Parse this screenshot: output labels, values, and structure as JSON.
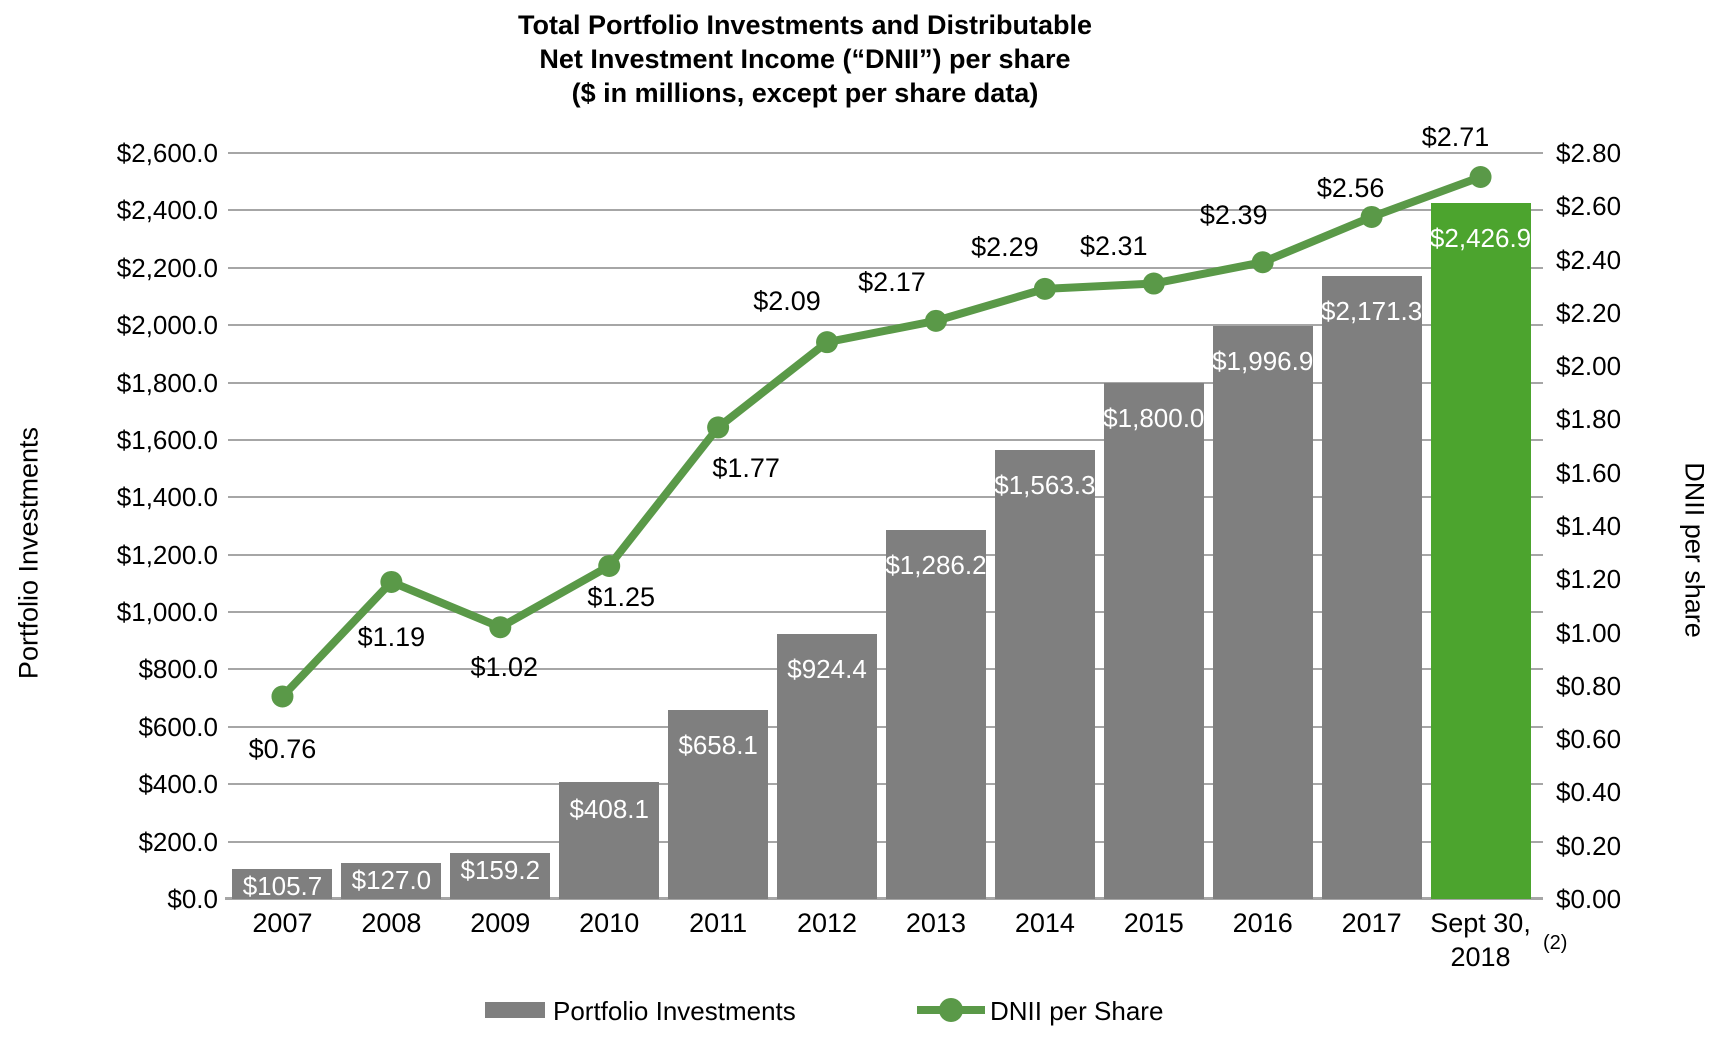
{
  "title": {
    "line1": "Total Portfolio Investments and Distributable",
    "line2": "Net Investment Income (“DNII”) per share",
    "line3": "($ in millions, except per share data)"
  },
  "chart_data": {
    "type": "bar+line combo",
    "categories": [
      "2007",
      "2008",
      "2009",
      "2010",
      "2011",
      "2012",
      "2013",
      "2014",
      "2015",
      "2016",
      "2017",
      "Sept 30, 2018"
    ],
    "series": [
      {
        "name": "Portfolio Investments",
        "type": "bar",
        "axis": "left",
        "values": [
          105.7,
          127.0,
          159.2,
          408.1,
          658.1,
          924.4,
          1286.2,
          1563.3,
          1800.0,
          1996.9,
          2171.3,
          2426.9
        ],
        "data_labels": [
          "$105.7",
          "$127.0",
          "$159.2",
          "$408.1",
          "$658.1",
          "$924.4",
          "$1,286.2",
          "$1,563.3",
          "$1,800.0",
          "$1,996.9",
          "$2,171.3",
          "$2,426.9"
        ]
      },
      {
        "name": "DNII per Share",
        "type": "line",
        "axis": "right",
        "values": [
          0.76,
          1.19,
          1.02,
          1.25,
          1.77,
          2.09,
          2.17,
          2.29,
          2.31,
          2.39,
          2.56,
          2.71
        ],
        "data_labels": [
          "$0.76",
          "$1.19",
          "$1.02",
          "$1.25",
          "$1.77",
          "$2.09",
          "$2.17",
          "$2.29",
          "$2.31",
          "$2.39",
          "$2.56",
          "$2.71"
        ]
      }
    ],
    "left_axis": {
      "title": "Portfolio Investments",
      "min": 0,
      "max": 2600,
      "step": 200,
      "tick_labels": [
        "$2,600.0",
        "$2,400.0",
        "$2,200.0",
        "$2,000.0",
        "$1,800.0",
        "$1,600.0",
        "$1,400.0",
        "$1,200.0",
        "$1,000.0",
        "$800.0",
        "$600.0",
        "$400.0",
        "$200.0",
        "$0.0"
      ]
    },
    "right_axis": {
      "title": "DNII per share",
      "min": 0,
      "max": 2.8,
      "step": 0.2,
      "tick_labels": [
        "$2.80",
        "$2.60",
        "$2.40",
        "$2.20",
        "$2.00",
        "$1.80",
        "$1.60",
        "$1.40",
        "$1.20",
        "$1.00",
        "$0.80",
        "$0.60",
        "$0.40",
        "$0.20",
        "$0.00"
      ]
    },
    "x_axis": {
      "footnote_marker": "(2)"
    },
    "legend": {
      "position": "bottom",
      "entries": [
        {
          "label": "Portfolio Investments",
          "swatch": "bar",
          "color": "#7F7F7F"
        },
        {
          "label": "DNII per Share",
          "swatch": "line",
          "color": "#5A9948"
        }
      ]
    },
    "colors": {
      "bar": "#7F7F7F",
      "bar_highlight": "#4CA42E",
      "line": "#5A9948",
      "gridline": "#A6A6A6",
      "axis_line": "#A6A6A6",
      "bar_label_text": "#FFFFFF",
      "text": "#000000"
    },
    "grid": "horizontal",
    "highlight_last_bar": true,
    "legend_position": "bottom"
  }
}
